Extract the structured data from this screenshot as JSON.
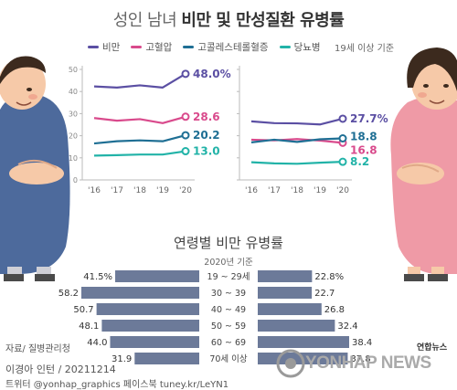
{
  "title": {
    "light": "성인 남녀 ",
    "bold": "비만 및 만성질환 유병률"
  },
  "basis": "19세 이상 기준",
  "colors": {
    "obesity": "#5b4fa3",
    "hypertension": "#d94a8c",
    "cholesterol": "#1f6f94",
    "diabetes": "#22b3a8",
    "bar": "#6c7a99",
    "axis": "#999999"
  },
  "chart_data": [
    {
      "type": "line",
      "panel": "male",
      "x": [
        "'16",
        "'17",
        "'18",
        "'19",
        "'20"
      ],
      "ylim": [
        0,
        50
      ],
      "yticks": [
        "0",
        "10",
        "20",
        "30",
        "40",
        "50"
      ],
      "series": [
        {
          "name": "비만",
          "values": [
            42.3,
            41.8,
            42.8,
            41.8,
            48.0
          ],
          "label": "48.0%"
        },
        {
          "name": "고혈압",
          "values": [
            28.0,
            26.8,
            27.5,
            25.7,
            28.6
          ],
          "label": "28.6"
        },
        {
          "name": "고콜레스테롤혈증",
          "values": [
            16.5,
            17.5,
            17.9,
            17.5,
            20.2
          ],
          "label": "20.2"
        },
        {
          "name": "당뇨병",
          "values": [
            11.0,
            11.2,
            11.5,
            11.5,
            13.0
          ],
          "label": "13.0"
        }
      ]
    },
    {
      "type": "line",
      "panel": "female",
      "x": [
        "'16",
        "'17",
        "'18",
        "'19",
        "'20"
      ],
      "ylim": [
        0,
        50
      ],
      "series": [
        {
          "name": "비만",
          "values": [
            26.5,
            25.7,
            25.6,
            25.1,
            27.7
          ],
          "label": "27.7%"
        },
        {
          "name": "고혈압",
          "values": [
            18.2,
            17.9,
            18.5,
            17.8,
            16.8
          ],
          "label": "16.8"
        },
        {
          "name": "고콜레스테롤혈증",
          "values": [
            17.0,
            18.2,
            17.2,
            18.4,
            18.8
          ],
          "label": "18.8"
        },
        {
          "name": "당뇨병",
          "values": [
            8.0,
            7.5,
            7.3,
            7.8,
            8.2
          ],
          "label": "8.2"
        }
      ]
    },
    {
      "type": "bar",
      "title": "연령별 비만 유병률",
      "subtitle": "2020년 기준",
      "categories": [
        "19 ~ 29세",
        "30 ~ 39",
        "40 ~ 49",
        "50 ~ 59",
        "60 ~ 69",
        "70세 이상"
      ],
      "series": [
        {
          "name": "남",
          "values": [
            41.5,
            58.2,
            50.7,
            48.1,
            44.0,
            31.9
          ],
          "labels": [
            "41.5%",
            "58.2",
            "50.7",
            "48.1",
            "44.0",
            "31.9"
          ]
        },
        {
          "name": "여",
          "values": [
            22.8,
            22.7,
            26.8,
            32.4,
            38.4,
            37.8
          ],
          "labels": [
            "22.8%",
            "22.7",
            "26.8",
            "32.4",
            "38.4",
            "37.8"
          ]
        }
      ]
    }
  ],
  "source": "자료/ 질병관리청",
  "credit": "이경아 인턴 / 20211214",
  "sns": "트위터 @yonhap_graphics  페이스북 tuney.kr/LeYN1",
  "brand_small": "연합뉴스",
  "brand": "YONHAP NEWS"
}
